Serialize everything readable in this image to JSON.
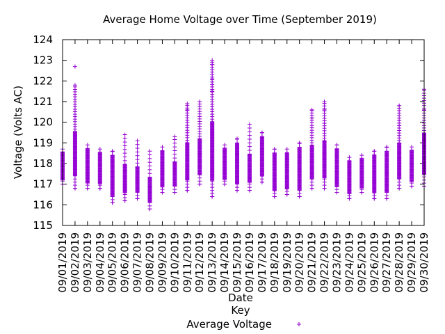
{
  "chart_data": {
    "type": "scatter",
    "title": "Average Home Voltage over Time (September 2019)",
    "xlabel": "Date",
    "ylabel": "Voltage (Volts AC)",
    "ylim": [
      115,
      124
    ],
    "yticks": [
      115,
      116,
      117,
      118,
      119,
      120,
      121,
      122,
      123,
      124
    ],
    "marker": "+",
    "grid": false,
    "legend": {
      "title": "Key",
      "position": "bottom-center",
      "entries": [
        "Average Voltage"
      ]
    },
    "color": "#9400d3",
    "categories": [
      "09/01/2019",
      "09/02/2019",
      "09/03/2019",
      "09/04/2019",
      "09/05/2019",
      "09/06/2019",
      "09/07/2019",
      "09/08/2019",
      "09/09/2019",
      "09/10/2019",
      "09/11/2019",
      "09/12/2019",
      "09/13/2019",
      "09/14/2019",
      "09/15/2019",
      "09/16/2019",
      "09/17/2019",
      "09/18/2019",
      "09/19/2019",
      "09/20/2019",
      "09/21/2019",
      "09/22/2019",
      "09/23/2019",
      "09/24/2019",
      "09/25/2019",
      "09/26/2019",
      "09/27/2019",
      "09/28/2019",
      "09/29/2019",
      "09/30/2019"
    ],
    "series": [
      {
        "name": "Average Voltage",
        "daily_range": [
          [
            117.0,
            118.7
          ],
          [
            116.8,
            121.8
          ],
          [
            116.8,
            118.9
          ],
          [
            116.8,
            118.7
          ],
          [
            116.1,
            118.6
          ],
          [
            116.2,
            119.4
          ],
          [
            116.3,
            119.1
          ],
          [
            115.8,
            118.6
          ],
          [
            116.6,
            118.8
          ],
          [
            116.6,
            119.3
          ],
          [
            116.7,
            120.9
          ],
          [
            117.0,
            121.0
          ],
          [
            116.4,
            123.0
          ],
          [
            117.0,
            118.9
          ],
          [
            116.7,
            119.2
          ],
          [
            116.7,
            119.9
          ],
          [
            117.1,
            119.5
          ],
          [
            116.4,
            118.7
          ],
          [
            116.5,
            118.7
          ],
          [
            116.4,
            119.0
          ],
          [
            116.8,
            120.6
          ],
          [
            116.8,
            121.0
          ],
          [
            116.6,
            118.9
          ],
          [
            116.3,
            118.3
          ],
          [
            116.6,
            118.4
          ],
          [
            116.3,
            118.6
          ],
          [
            116.3,
            118.8
          ],
          [
            116.8,
            120.8
          ],
          [
            116.9,
            118.8
          ],
          [
            116.9,
            121.6
          ]
        ],
        "outliers": [
          [
            1,
            122.7
          ],
          [
            12,
            122.8
          ],
          [
            12,
            122.1
          ],
          [
            12,
            121.5
          ],
          [
            10,
            120.6
          ],
          [
            20,
            120.2
          ],
          [
            21,
            120.6
          ],
          [
            27,
            120.8
          ],
          [
            29,
            120.6
          ],
          [
            29,
            119.4
          ]
        ]
      }
    ]
  }
}
